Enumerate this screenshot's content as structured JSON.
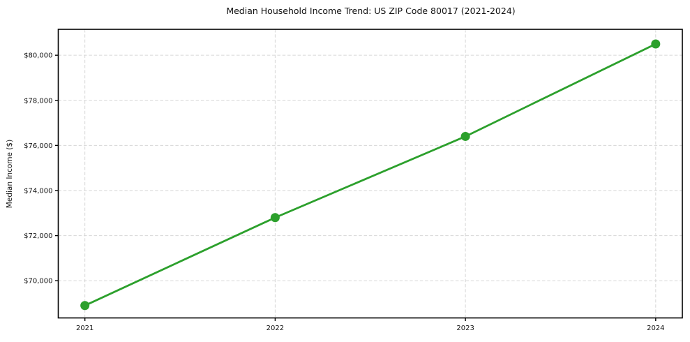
{
  "page": {
    "background": "#ffffff"
  },
  "chart_data": {
    "type": "line",
    "title": "Median Household Income Trend: US ZIP Code 80017 (2021-2024)",
    "xlabel": "",
    "ylabel": "Median Income ($)",
    "x": [
      2021,
      2022,
      2023,
      2024
    ],
    "values": [
      68900,
      72800,
      76400,
      80500
    ],
    "x_tick_labels": [
      "2021",
      "2022",
      "2023",
      "2024"
    ],
    "y_ticks": [
      70000,
      72000,
      74000,
      76000,
      78000,
      80000
    ],
    "y_tick_labels": [
      "$70,000",
      "$72,000",
      "$74,000",
      "$76,000",
      "$78,000",
      "$80,000"
    ],
    "xlim": [
      2020.86,
      2024.14
    ],
    "ylim": [
      68350,
      81150
    ],
    "grid": true,
    "grid_style": "dashed",
    "grid_color": "#d6d6d6",
    "line_color": "#2ca02c",
    "marker": "circle",
    "axis_color": "#000000",
    "text_color": "#111111",
    "legend": "none"
  }
}
